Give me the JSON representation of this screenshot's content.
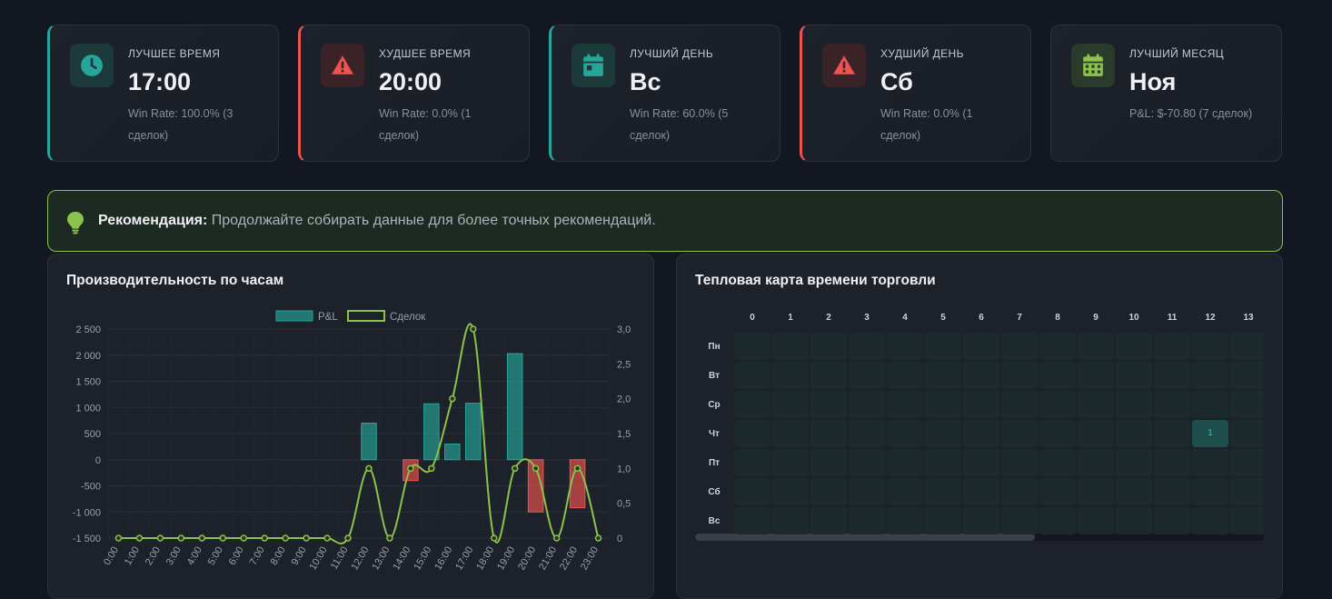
{
  "stats": [
    {
      "label": "Лучшее время",
      "value": "17:00",
      "sub_line1": "Win Rate: 100.0% (3",
      "sub_line2": "сделок)"
    },
    {
      "label": "Худшее время",
      "value": "20:00",
      "sub_line1": "Win Rate: 0.0% (1",
      "sub_line2": "сделок)"
    },
    {
      "label": "Лучший день",
      "value": "Вс",
      "sub_line1": "Win Rate: 60.0% (5",
      "sub_line2": "сделок)"
    },
    {
      "label": "Худший день",
      "value": "Сб",
      "sub_line1": "Win Rate: 0.0% (1",
      "sub_line2": "сделок)"
    },
    {
      "label": "Лучший месяц",
      "value": "Ноя",
      "sub_line1": "P&L: $-70.80 (7 сделок)",
      "sub_line2": ""
    }
  ],
  "icons": [
    "clock-icon",
    "warning-icon",
    "calendar-icon",
    "warning-icon",
    "calendar-grid-icon"
  ],
  "colors": {
    "green": "#26a69a",
    "red": "#ef5350",
    "lime": "#8bc34a",
    "background": "#131722",
    "panel": "#1d2129"
  },
  "recommendation": {
    "label": "Рекомендация:",
    "text": "Продолжайте собирать данные для более точных рекомендаций."
  },
  "hourly_panel": {
    "title": "Производительность по часам"
  },
  "heatmap_panel": {
    "title": "Тепловая карта времени торговли"
  },
  "chart_data": {
    "type": "bar",
    "categories": [
      "0:00",
      "1:00",
      "2:00",
      "3:00",
      "4:00",
      "5:00",
      "6:00",
      "7:00",
      "8:00",
      "9:00",
      "10:00",
      "11:00",
      "12:00",
      "13:00",
      "14:00",
      "15:00",
      "16:00",
      "17:00",
      "18:00",
      "19:00",
      "20:00",
      "21:00",
      "22:00",
      "23:00"
    ],
    "series": [
      {
        "name": "P&L",
        "axis": "left",
        "kind": "bar",
        "values": [
          0,
          0,
          0,
          0,
          0,
          0,
          0,
          0,
          0,
          0,
          0,
          0,
          700,
          0,
          -400,
          1070,
          300,
          1080,
          0,
          2030,
          -1000,
          0,
          -920,
          0
        ]
      },
      {
        "name": "Сделок",
        "axis": "right",
        "kind": "line",
        "values": [
          0,
          0,
          0,
          0,
          0,
          0,
          0,
          0,
          0,
          0,
          0,
          0,
          1,
          0,
          1,
          1,
          2,
          3,
          0,
          1,
          1,
          0,
          1,
          0
        ]
      }
    ],
    "y_left": {
      "ticks": [
        "2 500",
        "2 000",
        "1 500",
        "1 000",
        "500",
        "0",
        "-500",
        "-1 000",
        "-1 500"
      ],
      "range": [
        -1500,
        2500
      ]
    },
    "y_right": {
      "ticks": [
        "3,0",
        "2,5",
        "2,0",
        "1,5",
        "1,0",
        "0,5",
        "0"
      ],
      "range": [
        0,
        3
      ]
    },
    "legend": "top",
    "grid": true
  },
  "heatmap": {
    "columns": [
      "0",
      "1",
      "2",
      "3",
      "4",
      "5",
      "6",
      "7",
      "8",
      "9",
      "10",
      "11",
      "12",
      "13"
    ],
    "rows": [
      "Пн",
      "Вт",
      "Ср",
      "Чт",
      "Пт",
      "Сб",
      "Вс"
    ],
    "active": {
      "row": 3,
      "col": 12,
      "value": "1"
    }
  }
}
